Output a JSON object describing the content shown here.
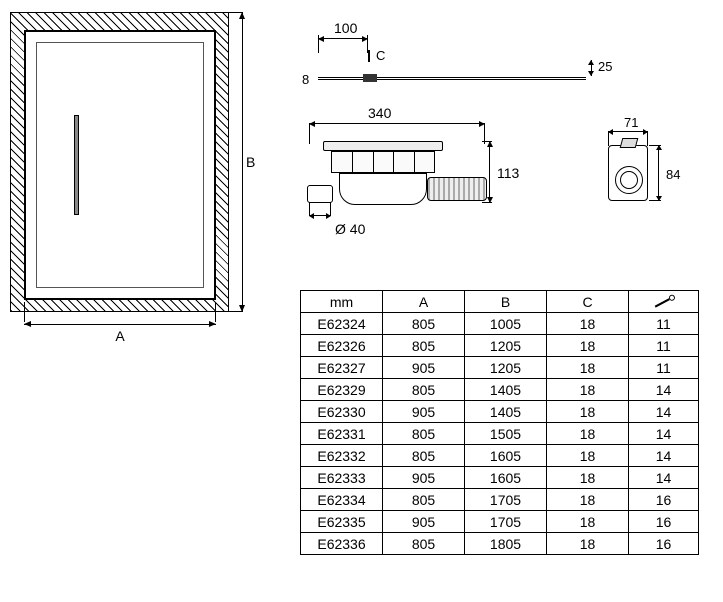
{
  "plan": {
    "dimA": "A",
    "dimB": "B"
  },
  "sectionTop": {
    "d100": "100",
    "dC": "C",
    "d8": "8",
    "d25": "25"
  },
  "drainTrap": {
    "d340": "340",
    "d113": "113",
    "d40": "Ø 40"
  },
  "endView": {
    "d71": "71",
    "d84": "84"
  },
  "table": {
    "headers": {
      "mm": "mm",
      "A": "A",
      "B": "B",
      "C": "C"
    },
    "columnWidths": {
      "mm": 82,
      "A": 82,
      "B": 82,
      "C": 82,
      "screw": 70
    },
    "rows": [
      {
        "model": "E62324",
        "A": "805",
        "B": "1005",
        "C": "18",
        "screw": "11"
      },
      {
        "model": "E62326",
        "A": "805",
        "B": "1205",
        "C": "18",
        "screw": "11"
      },
      {
        "model": "E62327",
        "A": "905",
        "B": "1205",
        "C": "18",
        "screw": "11"
      },
      {
        "model": "E62329",
        "A": "805",
        "B": "1405",
        "C": "18",
        "screw": "14"
      },
      {
        "model": "E62330",
        "A": "905",
        "B": "1405",
        "C": "18",
        "screw": "14"
      },
      {
        "model": "E62331",
        "A": "805",
        "B": "1505",
        "C": "18",
        "screw": "14"
      },
      {
        "model": "E62332",
        "A": "805",
        "B": "1605",
        "C": "18",
        "screw": "14"
      },
      {
        "model": "E62333",
        "A": "905",
        "B": "1605",
        "C": "18",
        "screw": "14"
      },
      {
        "model": "E62334",
        "A": "805",
        "B": "1705",
        "C": "18",
        "screw": "16"
      },
      {
        "model": "E62335",
        "A": "905",
        "B": "1705",
        "C": "18",
        "screw": "16"
      },
      {
        "model": "E62336",
        "A": "805",
        "B": "1805",
        "C": "18",
        "screw": "16"
      }
    ]
  },
  "styling": {
    "pageWidth": 723,
    "pageHeight": 602,
    "fontFamily": "Arial",
    "baseFontSize": 14,
    "lineColor": "#000000",
    "hatchAngle": 45,
    "tableBorderColor": "#000000",
    "tableBorderWidth": 1.35,
    "background": "#ffffff"
  }
}
